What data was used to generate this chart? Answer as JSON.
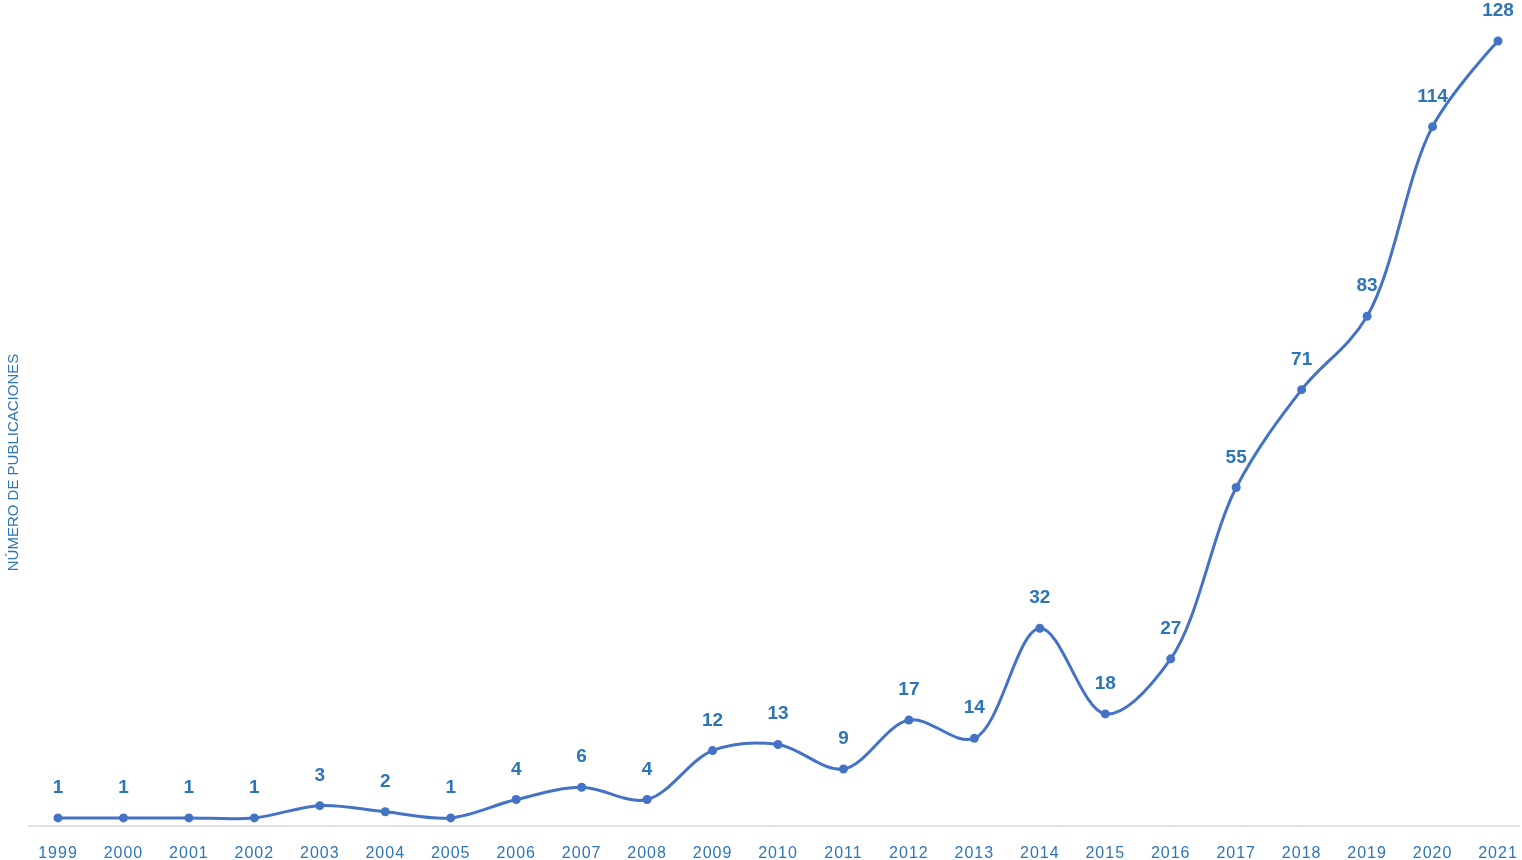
{
  "chart_data": {
    "type": "line",
    "ylabel": "NÚMERO DE PUBLICACIONES",
    "categories": [
      "1999",
      "2000",
      "2001",
      "2002",
      "2003",
      "2004",
      "2005",
      "2006",
      "2007",
      "2008",
      "2009",
      "2010",
      "2011",
      "2012",
      "2013",
      "2014",
      "2015",
      "2016",
      "2017",
      "2018",
      "2019",
      "2020",
      "2021"
    ],
    "series": [
      {
        "color": "#4472c4",
        "values": [
          1,
          1,
          1,
          1,
          3,
          2,
          1,
          4,
          6,
          4,
          12,
          13,
          9,
          17,
          14,
          32,
          18,
          27,
          55,
          71,
          83,
          114,
          128
        ]
      }
    ],
    "data_labels": true,
    "marker": "circle",
    "tick_labels": "x",
    "line_style": "solid"
  }
}
